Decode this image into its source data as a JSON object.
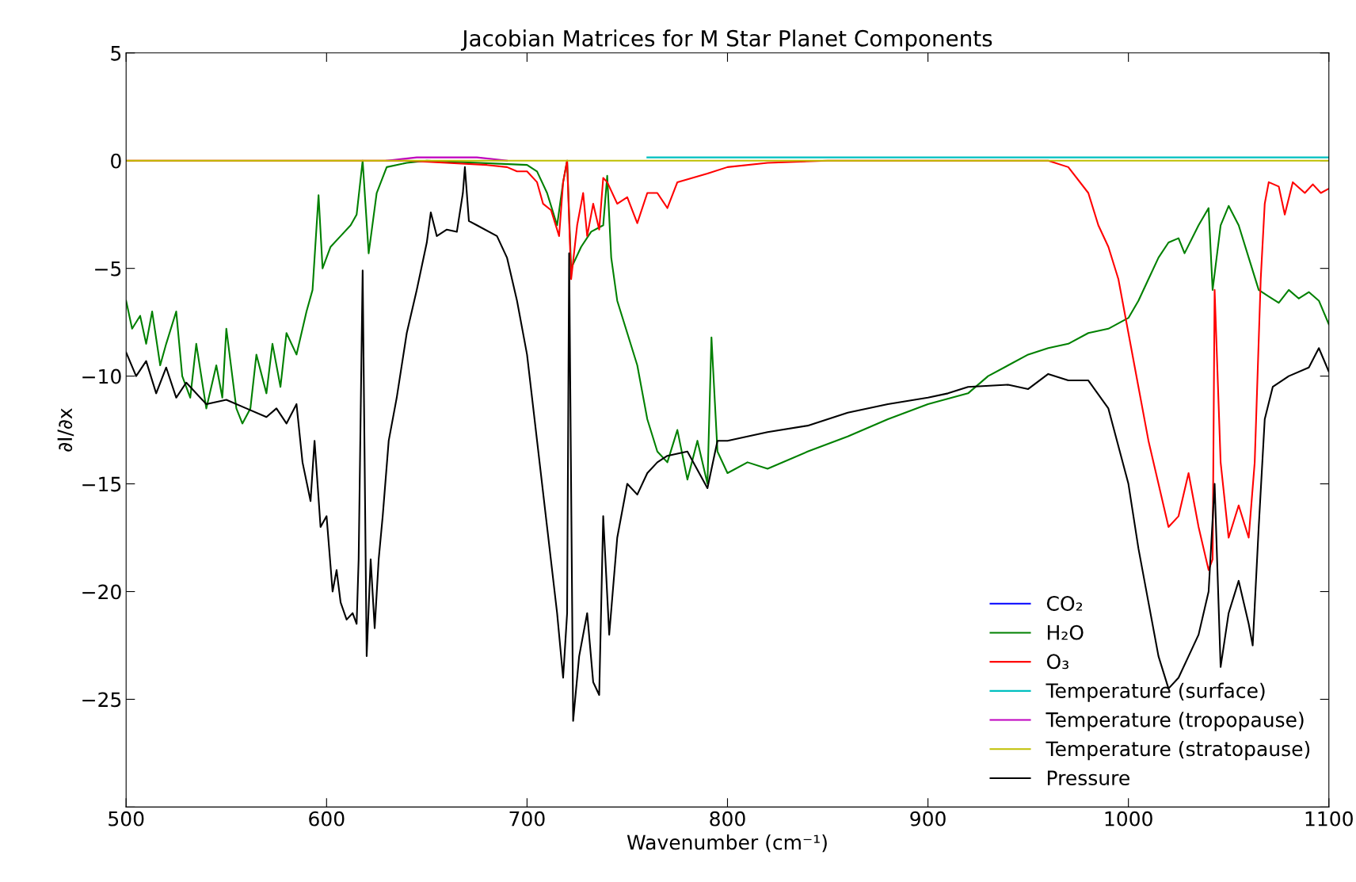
{
  "chart_data": {
    "type": "line",
    "title": "Jacobian Matrices for M Star Planet Components",
    "xlabel": "Wavenumber (cm⁻¹)",
    "ylabel": "∂I/∂x",
    "xlim": [
      500,
      1100
    ],
    "xticks": [
      500,
      600,
      700,
      800,
      900,
      1000,
      1100
    ],
    "ylim": [
      -30,
      5
    ],
    "yticks": [
      {
        "value": -30,
        "label": null
      },
      {
        "value": -25,
        "label": "−25"
      },
      {
        "value": -20,
        "label": "−20"
      },
      {
        "value": -15,
        "label": "−15"
      },
      {
        "value": -10,
        "label": "−10"
      },
      {
        "value": -5,
        "label": "−5"
      },
      0,
      5
    ],
    "grid": false,
    "legend": "bottom right",
    "marker": "none",
    "line_style": "solid",
    "series": [
      {
        "name": "CO₂",
        "color": "#0000ff"
      },
      {
        "name": "H₂O",
        "color": "#008000",
        "x": [
          500,
          503,
          507,
          510,
          513,
          517,
          520,
          525,
          528,
          532,
          535,
          540,
          545,
          548,
          550,
          555,
          558,
          562,
          565,
          570,
          573,
          577,
          580,
          585,
          590,
          593,
          596,
          598,
          602,
          607,
          612,
          615,
          618,
          621,
          625,
          630,
          640,
          650,
          700,
          705,
          710,
          715,
          718,
          720,
          722,
          727,
          732,
          738,
          740,
          742,
          745,
          750,
          755,
          760,
          765,
          770,
          775,
          780,
          785,
          790,
          792,
          795,
          800,
          810,
          820,
          840,
          860,
          880,
          900,
          920,
          930,
          940,
          950,
          960,
          970,
          980,
          990,
          1000,
          1005,
          1010,
          1015,
          1020,
          1025,
          1028,
          1035,
          1040,
          1042,
          1046,
          1050,
          1055,
          1060,
          1065,
          1070,
          1075,
          1080,
          1085,
          1090,
          1095,
          1100
        ],
        "values": [
          -6.5,
          -7.8,
          -7.2,
          -8.5,
          -7.0,
          -9.5,
          -8.5,
          -7.0,
          -10.0,
          -11.0,
          -8.5,
          -11.5,
          -9.5,
          -11.0,
          -7.8,
          -11.5,
          -12.2,
          -11.5,
          -9.0,
          -10.8,
          -8.5,
          -10.5,
          -8.0,
          -9.0,
          -7.0,
          -6.0,
          -1.6,
          -5.0,
          -4.0,
          -3.5,
          -3.0,
          -2.5,
          0.0,
          -4.3,
          -1.5,
          -0.3,
          -0.1,
          0,
          -0.2,
          -0.5,
          -1.5,
          -3.0,
          -1.0,
          0,
          -5.0,
          -4.0,
          -3.3,
          -3.0,
          -0.7,
          -4.5,
          -6.5,
          -8.0,
          -9.5,
          -12.0,
          -13.5,
          -14.0,
          -12.5,
          -14.8,
          -13.0,
          -15.0,
          -8.2,
          -13.5,
          -14.5,
          -14.0,
          -14.3,
          -13.5,
          -12.8,
          -12.0,
          -11.3,
          -10.8,
          -10.0,
          -9.5,
          -9.0,
          -8.7,
          -8.5,
          -8.0,
          -7.8,
          -7.3,
          -6.5,
          -5.5,
          -4.5,
          -3.8,
          -3.6,
          -4.3,
          -3.0,
          -2.2,
          -6.0,
          -3.0,
          -2.1,
          -3.0,
          -4.5,
          -6.0,
          -6.3,
          -6.6,
          -6.0,
          -6.4,
          -6.1,
          -6.5,
          -7.6
        ]
      },
      {
        "name": "O₃",
        "color": "#ff0000",
        "x": [
          500,
          640,
          660,
          680,
          690,
          695,
          700,
          705,
          708,
          712,
          716,
          718,
          720,
          722,
          725,
          728,
          730,
          733,
          736,
          738,
          740,
          745,
          750,
          755,
          760,
          765,
          770,
          775,
          790,
          800,
          820,
          850,
          960,
          970,
          980,
          985,
          990,
          995,
          1000,
          1005,
          1010,
          1015,
          1020,
          1025,
          1030,
          1035,
          1040,
          1042,
          1043,
          1046,
          1050,
          1055,
          1060,
          1063,
          1066,
          1068,
          1070,
          1075,
          1078,
          1082,
          1088,
          1092,
          1096,
          1100
        ],
        "values": [
          0,
          0,
          -0.1,
          -0.2,
          -0.3,
          -0.5,
          -0.5,
          -1.0,
          -2.0,
          -2.3,
          -3.5,
          -1.0,
          0,
          -5.5,
          -3.0,
          -1.5,
          -3.5,
          -2.0,
          -3.2,
          -0.8,
          -1.0,
          -2.0,
          -1.7,
          -2.9,
          -1.5,
          -1.5,
          -2.2,
          -1.0,
          -0.6,
          -0.3,
          -0.1,
          0,
          0,
          -0.3,
          -1.5,
          -3.0,
          -4.0,
          -5.5,
          -8.0,
          -10.5,
          -13.0,
          -15.0,
          -17.0,
          -16.5,
          -14.5,
          -17.0,
          -19.0,
          -18.5,
          -6.0,
          -14.0,
          -17.5,
          -16.0,
          -17.5,
          -14.0,
          -5.5,
          -2.0,
          -1.0,
          -1.2,
          -2.5,
          -1.0,
          -1.5,
          -1.1,
          -1.5,
          -1.3
        ]
      },
      {
        "name": "Temperature (surface)",
        "color": "#00bfbf",
        "x": [
          760,
          800,
          900,
          1000,
          1100
        ],
        "values": [
          0.15,
          0.15,
          0.15,
          0.15,
          0.15
        ]
      },
      {
        "name": "Temperature (tropopause)",
        "color": "#bf00bf",
        "x": [
          630,
          645,
          660,
          675,
          690
        ],
        "values": [
          0,
          0.15,
          0.15,
          0.15,
          0
        ]
      },
      {
        "name": "Temperature (stratopause)",
        "color": "#bfbf00",
        "x": [
          500,
          700,
          900,
          1100
        ],
        "values": [
          0,
          0,
          0,
          0
        ]
      },
      {
        "name": "Pressure",
        "color": "#000000",
        "x": [
          500,
          505,
          510,
          515,
          520,
          525,
          530,
          540,
          550,
          560,
          570,
          575,
          580,
          585,
          588,
          592,
          594,
          597,
          600,
          603,
          605,
          607,
          610,
          613,
          615,
          616,
          618,
          620,
          622,
          624,
          626,
          628,
          631,
          635,
          640,
          645,
          650,
          652,
          655,
          660,
          665,
          668,
          669,
          671,
          675,
          685,
          690,
          695,
          700,
          705,
          710,
          715,
          718,
          720,
          721,
          723,
          726,
          730,
          733,
          736,
          738,
          741,
          745,
          750,
          755,
          760,
          765,
          770,
          780,
          790,
          795,
          800,
          820,
          840,
          850,
          860,
          880,
          900,
          910,
          920,
          940,
          950,
          960,
          970,
          980,
          990,
          1000,
          1005,
          1010,
          1015,
          1020,
          1025,
          1030,
          1035,
          1040,
          1043,
          1046,
          1050,
          1055,
          1060,
          1062,
          1065,
          1068,
          1072,
          1080,
          1090,
          1095,
          1100
        ],
        "values": [
          -8.9,
          -10.0,
          -9.3,
          -10.8,
          -9.6,
          -11.0,
          -10.3,
          -11.3,
          -11.1,
          -11.5,
          -11.9,
          -11.5,
          -12.2,
          -11.3,
          -14.0,
          -15.8,
          -13.0,
          -17.0,
          -16.5,
          -20.0,
          -19.0,
          -20.5,
          -21.3,
          -21.0,
          -21.5,
          -18.5,
          -5.1,
          -23.0,
          -18.5,
          -21.7,
          -18.5,
          -16.5,
          -13.0,
          -11.0,
          -8.0,
          -6.0,
          -3.8,
          -2.4,
          -3.5,
          -3.2,
          -3.3,
          -1.5,
          -0.3,
          -2.8,
          -3.0,
          -3.5,
          -4.5,
          -6.5,
          -9.0,
          -13.0,
          -17.0,
          -21.0,
          -24.0,
          -21.0,
          -4.3,
          -26.0,
          -23.0,
          -21.0,
          -24.2,
          -24.8,
          -16.5,
          -22.0,
          -17.5,
          -15.0,
          -15.5,
          -14.5,
          -14.0,
          -13.7,
          -13.5,
          -15.2,
          -13.0,
          -13.0,
          -12.6,
          -12.3,
          -12.0,
          -11.7,
          -11.3,
          -11.0,
          -10.8,
          -10.5,
          -10.4,
          -10.6,
          -9.9,
          -10.2,
          -10.2,
          -11.5,
          -15.0,
          -18.0,
          -20.5,
          -23.0,
          -24.5,
          -24.0,
          -23.0,
          -22.0,
          -20.0,
          -15.0,
          -23.5,
          -21.0,
          -19.5,
          -21.5,
          -22.5,
          -17.0,
          -12.0,
          -10.5,
          -10.0,
          -9.6,
          -8.7,
          -9.8
        ]
      }
    ]
  }
}
